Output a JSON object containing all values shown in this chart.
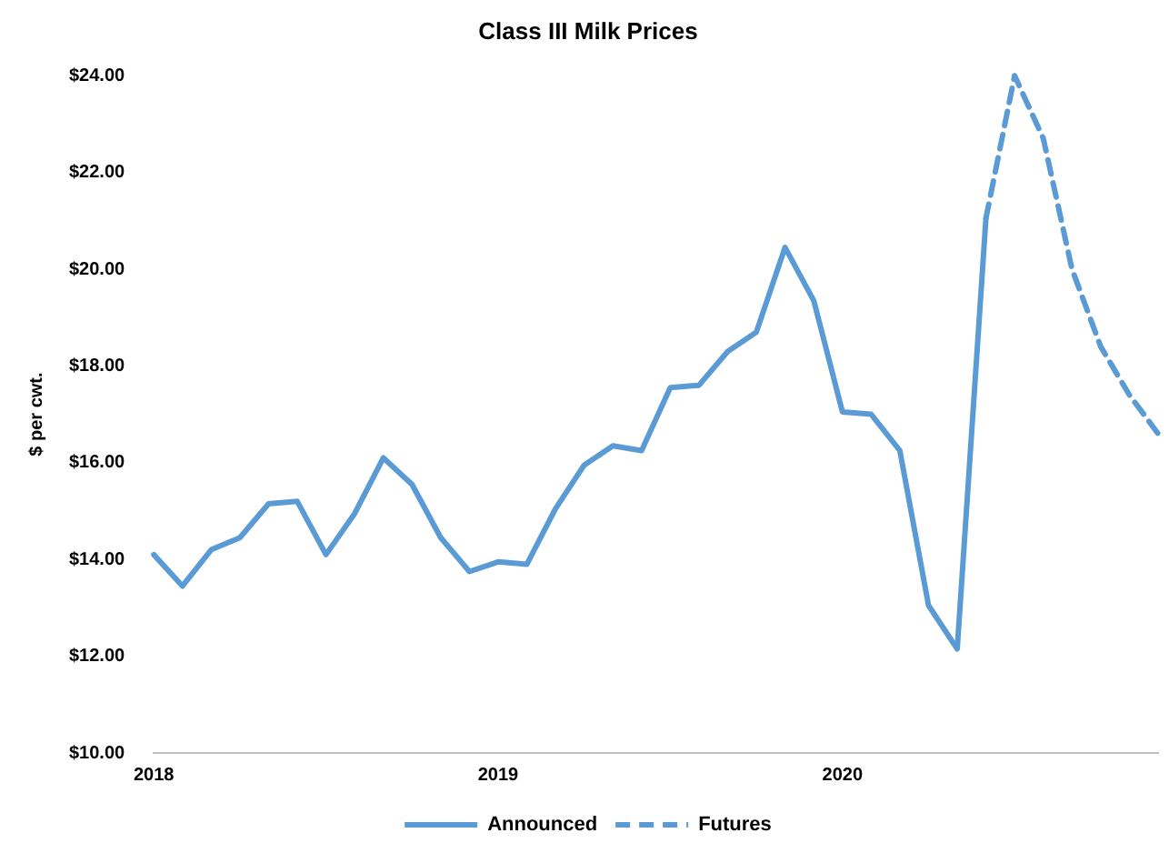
{
  "chart_data": {
    "type": "line",
    "title": "Class III Milk Prices",
    "ylabel": "$ per cwt.",
    "categories": [
      "2018",
      null,
      null,
      null,
      null,
      null,
      null,
      null,
      null,
      null,
      null,
      null,
      "2019",
      null,
      null,
      null,
      null,
      null,
      null,
      null,
      null,
      null,
      null,
      null,
      "2020",
      null,
      null,
      null,
      null,
      null,
      null,
      null,
      null,
      null,
      null,
      null
    ],
    "series": [
      {
        "name": "Announced",
        "color": "#5b9bd5",
        "line_style": "solid",
        "values": [
          14.1,
          13.45,
          14.2,
          14.45,
          15.15,
          15.2,
          14.1,
          14.95,
          16.1,
          15.55,
          14.45,
          13.75,
          13.95,
          13.9,
          15.05,
          15.95,
          16.35,
          16.25,
          17.55,
          17.6,
          18.3,
          18.7,
          20.45,
          19.35,
          17.05,
          17.0,
          16.25,
          13.05,
          12.15,
          21.05,
          null,
          null,
          null,
          null,
          null,
          null
        ]
      },
      {
        "name": "Futures",
        "color": "#5b9bd5",
        "line_style": "dashed",
        "values": [
          null,
          null,
          null,
          null,
          null,
          null,
          null,
          null,
          null,
          null,
          null,
          null,
          null,
          null,
          null,
          null,
          null,
          null,
          null,
          null,
          null,
          null,
          null,
          null,
          null,
          null,
          null,
          null,
          null,
          21.05,
          24.0,
          22.7,
          20.0,
          18.4,
          17.4,
          16.6
        ]
      }
    ],
    "ylim": [
      10,
      24
    ],
    "yticks": [
      {
        "value": 10,
        "label": "$10.00"
      },
      {
        "value": 12,
        "label": "$12.00"
      },
      {
        "value": 14,
        "label": "$14.00"
      },
      {
        "value": 16,
        "label": "$16.00"
      },
      {
        "value": 18,
        "label": "$18.00"
      },
      {
        "value": 20,
        "label": "$20.00"
      },
      {
        "value": 22,
        "label": "$22.00"
      },
      {
        "value": 24,
        "label": "$24.00"
      }
    ],
    "grid": false,
    "legend": "bottom",
    "marker": "none"
  }
}
